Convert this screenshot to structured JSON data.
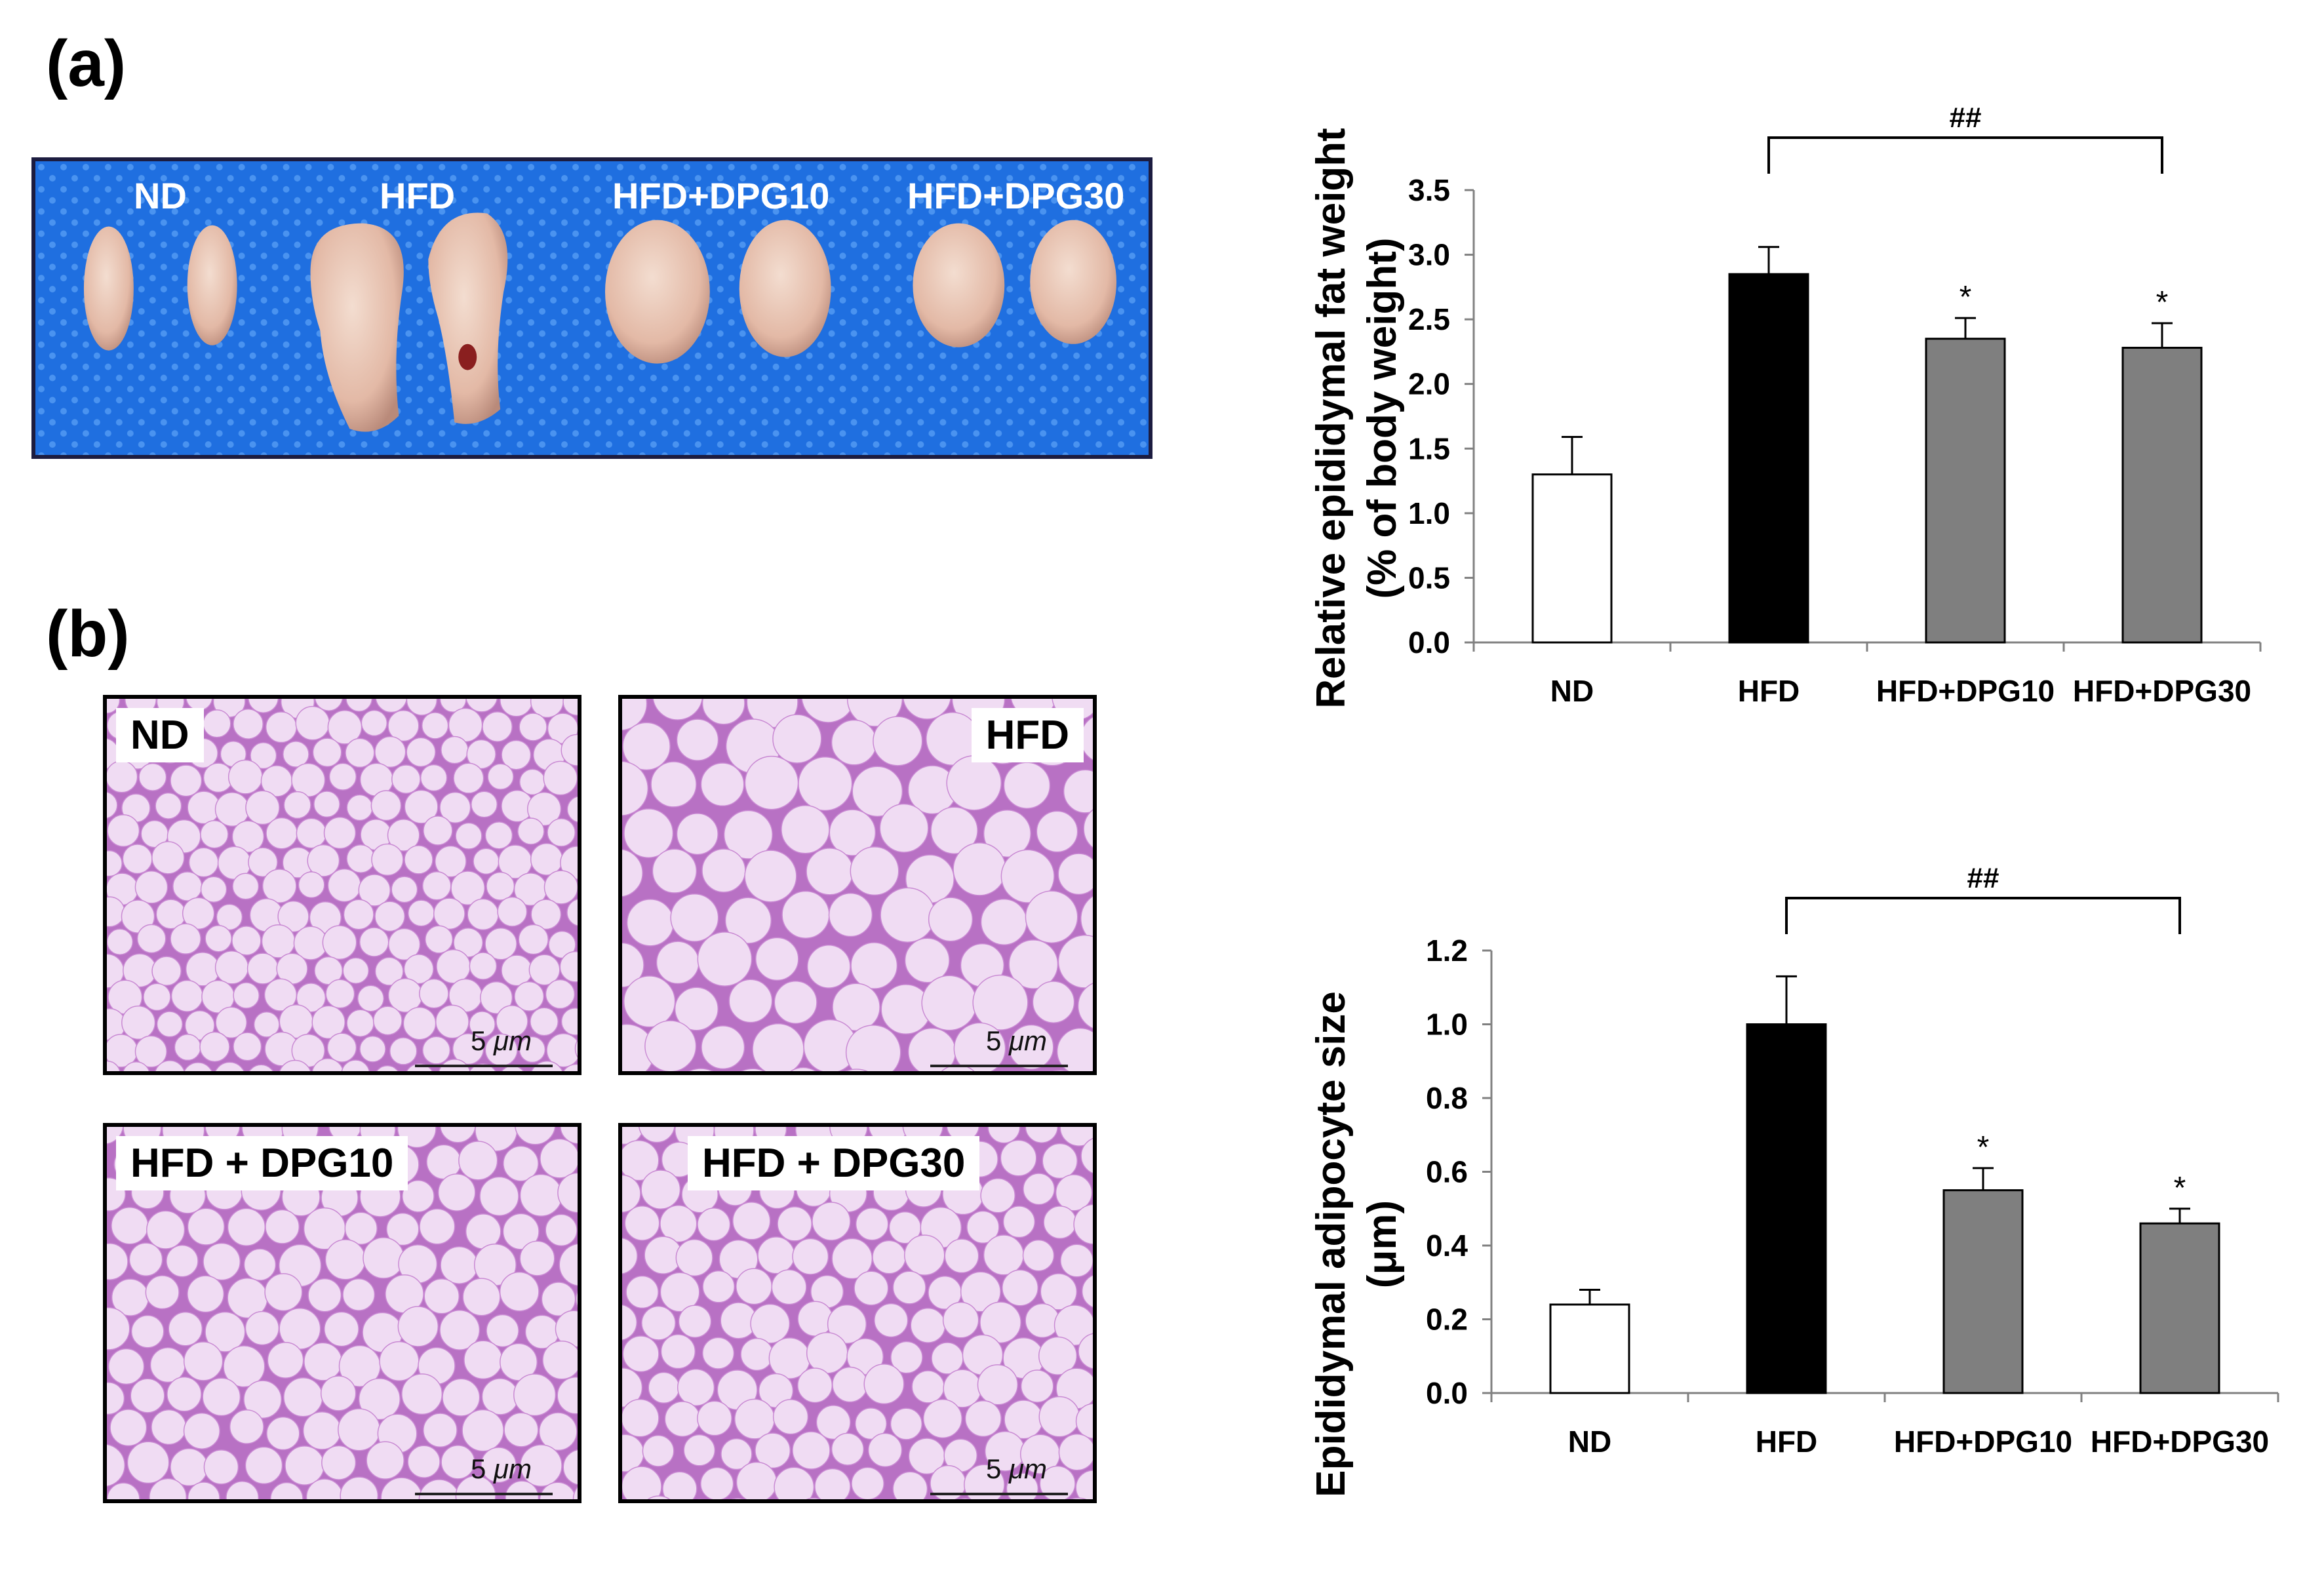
{
  "panels": {
    "a_label": "(a)",
    "b_label": "(b)"
  },
  "photo": {
    "labels": [
      "ND",
      "HFD",
      "HFD+DPG10",
      "HFD+DPG30"
    ]
  },
  "histology": [
    {
      "label": "ND",
      "scale": "5",
      "unit": "μm"
    },
    {
      "label": "HFD",
      "scale": "5",
      "unit": "μm"
    },
    {
      "label": "HFD + DPG10",
      "scale": "5",
      "unit": "μm"
    },
    {
      "label": "HFD + DPG30",
      "scale": "5",
      "unit": "μm"
    }
  ],
  "chart_data": [
    {
      "type": "bar",
      "categories": [
        "ND",
        "HFD",
        "HFD+DPG10",
        "HFD+DPG30"
      ],
      "values": [
        1.3,
        2.85,
        2.35,
        2.28
      ],
      "errors": [
        0.29,
        0.21,
        0.16,
        0.19
      ],
      "bar_colors": [
        "#ffffff",
        "#000000",
        "#7f7f7f",
        "#7f7f7f"
      ],
      "significance": [
        "",
        "",
        "*",
        "*"
      ],
      "bracket": {
        "from": "HFD",
        "to": "HFD+DPG30",
        "label": "##"
      },
      "ylabel_lines": [
        "Relative epididymal fat weight",
        "(% of body weight)"
      ],
      "ylim": [
        0,
        3.5
      ],
      "yticks": [
        "0.0",
        "0.5",
        "1.0",
        "1.5",
        "2.0",
        "2.5",
        "3.0",
        "3.5"
      ],
      "grid": false
    },
    {
      "type": "bar",
      "categories": [
        "ND",
        "HFD",
        "HFD+DPG10",
        "HFD+DPG30"
      ],
      "values": [
        0.24,
        1.0,
        0.55,
        0.46
      ],
      "errors": [
        0.04,
        0.13,
        0.06,
        0.04
      ],
      "bar_colors": [
        "#ffffff",
        "#000000",
        "#7f7f7f",
        "#7f7f7f"
      ],
      "significance": [
        "",
        "",
        "*",
        "*"
      ],
      "bracket": {
        "from": "HFD",
        "to": "HFD+DPG30",
        "label": "##"
      },
      "ylabel_lines": [
        "Epididymal adipocyte size",
        "(μm)"
      ],
      "ylim": [
        0,
        1.2
      ],
      "yticks": [
        "0.0",
        "0.2",
        "0.4",
        "0.6",
        "0.8",
        "1.0",
        "1.2"
      ],
      "grid": false
    }
  ]
}
